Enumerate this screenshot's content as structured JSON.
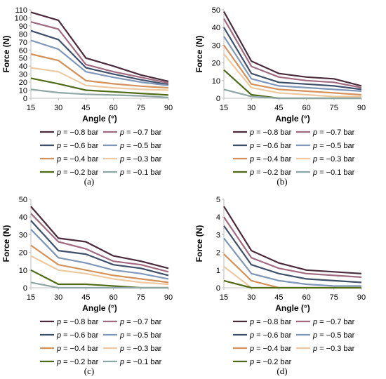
{
  "colors": {
    "p-0.8": "#4a2b3b",
    "p-0.7": "#a06a80",
    "p-0.6": "#3e4f6a",
    "p-0.5": "#7f97b8",
    "p-0.4": "#d5915a",
    "p-0.3": "#ecc9a0",
    "p-0.2": "#4f6b18",
    "p-0.1": "#8fa7a4"
  },
  "chart_data": [
    {
      "type": "line",
      "panel_label": "(a)",
      "xlabel": "Angle (°)",
      "ylabel": "Force (N)",
      "xlim": [
        15,
        90
      ],
      "ylim": [
        0,
        110
      ],
      "yticks": [
        0,
        10,
        20,
        30,
        40,
        50,
        60,
        70,
        80,
        90,
        100,
        110
      ],
      "xticks": [
        15,
        30,
        45,
        60,
        75,
        90
      ],
      "x": [
        15,
        30,
        45,
        60,
        75,
        90
      ],
      "series": [
        {
          "name": "p = −0.8 bar",
          "key": "p-0.8",
          "values": [
            107,
            97,
            50,
            40,
            29,
            21
          ]
        },
        {
          "name": "p = −0.7 bar",
          "key": "p-0.7",
          "values": [
            95,
            86,
            42,
            33,
            26,
            19
          ]
        },
        {
          "name": "p = −0.6 bar",
          "key": "p-0.6",
          "values": [
            84,
            73,
            38,
            30,
            23,
            17
          ]
        },
        {
          "name": "p = −0.5 bar",
          "key": "p-0.5",
          "values": [
            72,
            61,
            33,
            26,
            20,
            16
          ]
        },
        {
          "name": "p = −0.4 bar",
          "key": "p-0.4",
          "values": [
            55,
            47,
            22,
            18,
            15,
            13
          ]
        },
        {
          "name": "p = −0.3 bar",
          "key": "p-0.3",
          "values": [
            38,
            33,
            16,
            13,
            11,
            10
          ]
        },
        {
          "name": "p = −0.2 bar",
          "key": "p-0.2",
          "values": [
            25,
            18,
            10,
            8,
            6,
            4
          ]
        },
        {
          "name": "p = −0.1 bar",
          "key": "p-0.1",
          "values": [
            11,
            7,
            5,
            4,
            3,
            1
          ]
        }
      ]
    },
    {
      "type": "line",
      "panel_label": "(b)",
      "xlabel": "Angle (°)",
      "ylabel": "Force (N)",
      "xlim": [
        15,
        90
      ],
      "ylim": [
        0,
        50
      ],
      "yticks": [
        0,
        10,
        20,
        30,
        40,
        50
      ],
      "xticks": [
        15,
        30,
        45,
        60,
        75,
        90
      ],
      "x": [
        15,
        30,
        45,
        60,
        75,
        90
      ],
      "series": [
        {
          "name": "p = −0.8 bar",
          "key": "p-0.8",
          "values": [
            49,
            21,
            14,
            12,
            11,
            7
          ]
        },
        {
          "name": "p = −0.7 bar",
          "key": "p-0.7",
          "values": [
            45,
            18,
            12,
            10,
            9,
            6
          ]
        },
        {
          "name": "p = −0.6 bar",
          "key": "p-0.6",
          "values": [
            40,
            14,
            9,
            8,
            7,
            5
          ]
        },
        {
          "name": "p = −0.5 bar",
          "key": "p-0.5",
          "values": [
            35,
            11,
            7,
            6,
            5,
            4
          ]
        },
        {
          "name": "p = −0.4 bar",
          "key": "p-0.4",
          "values": [
            30,
            8,
            5,
            4,
            3,
            2
          ]
        },
        {
          "name": "p = −0.3 bar",
          "key": "p-0.3",
          "values": [
            25,
            6,
            3,
            2,
            1,
            1
          ]
        },
        {
          "name": "p = −0.2 bar",
          "key": "p-0.2",
          "values": [
            16,
            2,
            0,
            0,
            0,
            0
          ]
        },
        {
          "name": "p = −0.1 bar",
          "key": "p-0.1",
          "values": [
            5,
            1,
            0,
            0,
            0,
            0
          ]
        }
      ]
    },
    {
      "type": "line",
      "panel_label": "(c)",
      "xlabel": "Angle (°)",
      "ylabel": "Force (N)",
      "xlim": [
        15,
        90
      ],
      "ylim": [
        0,
        50
      ],
      "yticks": [
        0,
        10,
        20,
        30,
        40,
        50
      ],
      "xticks": [
        15,
        30,
        45,
        60,
        75,
        90
      ],
      "x": [
        15,
        30,
        45,
        60,
        75,
        90
      ],
      "series": [
        {
          "name": "p = −0.8 bar",
          "key": "p-0.8",
          "values": [
            46,
            28,
            26,
            18,
            15,
            11
          ]
        },
        {
          "name": "p = −0.7 bar",
          "key": "p-0.7",
          "values": [
            42,
            26,
            22,
            15,
            13,
            9
          ]
        },
        {
          "name": "p = −0.6 bar",
          "key": "p-0.6",
          "values": [
            38,
            21,
            19,
            13,
            11,
            7
          ]
        },
        {
          "name": "p = −0.5 bar",
          "key": "p-0.5",
          "values": [
            33,
            17,
            14,
            10,
            8,
            5
          ]
        },
        {
          "name": "p = −0.4 bar",
          "key": "p-0.4",
          "values": [
            24,
            13,
            10,
            7,
            5,
            3
          ]
        },
        {
          "name": "p = −0.3 bar",
          "key": "p-0.3",
          "values": [
            18,
            10,
            8,
            5,
            3,
            2
          ]
        },
        {
          "name": "p = −0.2 bar",
          "key": "p-0.2",
          "values": [
            10,
            2,
            2,
            1,
            0,
            0
          ]
        },
        {
          "name": "p = −0.1 bar",
          "key": "p-0.1",
          "values": [
            3,
            0,
            0,
            0,
            0,
            0
          ]
        }
      ]
    },
    {
      "type": "line",
      "panel_label": "(d)",
      "xlabel": "Angle (°)",
      "ylabel": "Force (N)",
      "xlim": [
        15,
        90
      ],
      "ylim": [
        0,
        5
      ],
      "yticks": [
        0,
        1,
        2,
        3,
        4,
        5
      ],
      "xticks": [
        15,
        30,
        45,
        60,
        75,
        90
      ],
      "x": [
        15,
        30,
        45,
        60,
        75,
        90
      ],
      "series": [
        {
          "name": "p = −0.8 bar",
          "key": "p-0.8",
          "values": [
            4.6,
            2.1,
            1.4,
            1.0,
            0.9,
            0.8
          ]
        },
        {
          "name": "p = −0.7 bar",
          "key": "p-0.7",
          "values": [
            4.0,
            1.7,
            1.1,
            0.8,
            0.7,
            0.6
          ]
        },
        {
          "name": "p = −0.6 bar",
          "key": "p-0.6",
          "values": [
            3.5,
            1.3,
            0.8,
            0.5,
            0.4,
            0.3
          ]
        },
        {
          "name": "p = −0.5 bar",
          "key": "p-0.5",
          "values": [
            2.8,
            0.8,
            0.4,
            0.2,
            0.1,
            0.1
          ]
        },
        {
          "name": "p = −0.4 bar",
          "key": "p-0.4",
          "values": [
            1.9,
            0.4,
            0.0,
            0.0,
            0.0,
            0.0
          ]
        },
        {
          "name": "p = −0.3 bar",
          "key": "p-0.3",
          "values": [
            1.2,
            0.0,
            0.0,
            0.0,
            0.0,
            0.0
          ]
        },
        {
          "name": "p = −0.2 bar",
          "key": "p-0.2",
          "values": [
            0.4,
            0.0,
            0.0,
            0.0,
            0.0,
            0.0
          ]
        }
      ]
    }
  ]
}
